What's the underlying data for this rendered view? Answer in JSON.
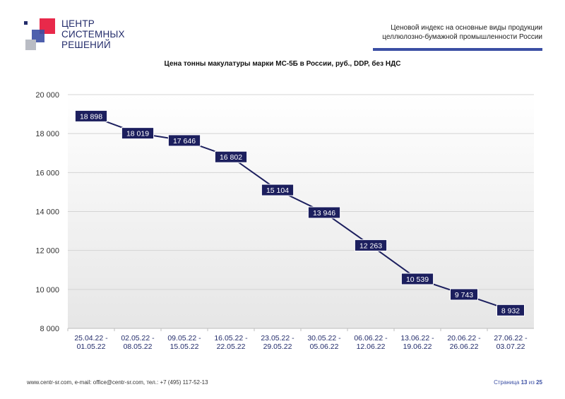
{
  "header": {
    "logo_lines": [
      "ЦЕНТР",
      "СИСТЕМНЫХ",
      "РЕШЕНИЙ"
    ],
    "index_title_line1": "Ценовой индекс на основные виды продукции",
    "index_title_line2": "целлюлозно-бумажной промышленности России"
  },
  "footer": {
    "contacts": "www.centr-sr.com, e-mail: office@centr-sr.com, тел.: +7 (495) 117-52-13",
    "page_prefix": "Страница",
    "page_current": "13",
    "page_of": "из",
    "page_total": "25"
  },
  "colors": {
    "accent_red": "#e8294a",
    "accent_blue": "#3b4fa4",
    "label_bg": "#1c1f5e",
    "line": "#1c1f5e"
  },
  "chart_data": {
    "type": "line",
    "title": "Цена тонны макулатуры марки МС-5Б в России, руб., DDP, без НДС",
    "categories": [
      [
        "25.04.22 -",
        "01.05.22"
      ],
      [
        "02.05.22 -",
        "08.05.22"
      ],
      [
        "09.05.22 -",
        "15.05.22"
      ],
      [
        "16.05.22 -",
        "22.05.22"
      ],
      [
        "23.05.22 -",
        "29.05.22"
      ],
      [
        "30.05.22 -",
        "05.06.22"
      ],
      [
        "06.06.22 -",
        "12.06.22"
      ],
      [
        "13.06.22 -",
        "19.06.22"
      ],
      [
        "20.06.22 -",
        "26.06.22"
      ],
      [
        "27.06.22 -",
        "03.07.22"
      ]
    ],
    "values": [
      18898,
      18019,
      17646,
      16802,
      15104,
      13946,
      12263,
      10539,
      9743,
      8932
    ],
    "value_labels": [
      "18 898",
      "18 019",
      "17 646",
      "16 802",
      "15 104",
      "13 946",
      "12 263",
      "10 539",
      "9 743",
      "8 932"
    ],
    "ylim": [
      8000,
      20000
    ],
    "yticks": [
      8000,
      10000,
      12000,
      14000,
      16000,
      18000,
      20000
    ],
    "ytick_labels": [
      "8 000",
      "10 000",
      "12 000",
      "14 000",
      "16 000",
      "18 000",
      "20 000"
    ],
    "grid": true,
    "legend": "none"
  }
}
